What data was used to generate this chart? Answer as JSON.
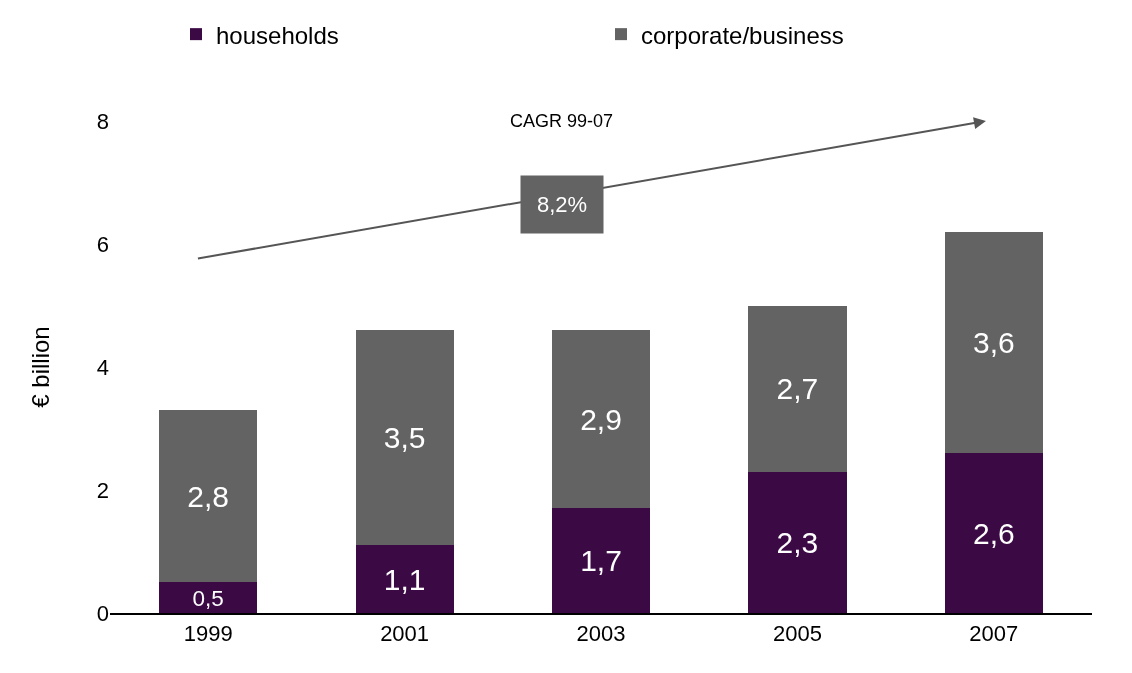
{
  "chart_data": {
    "type": "bar",
    "stacked": true,
    "ylabel": "€ billion",
    "categories": [
      "1999",
      "2001",
      "2003",
      "2005",
      "2007"
    ],
    "series": [
      {
        "name": "households",
        "color": "#3b0a45",
        "values": [
          0.5,
          1.1,
          1.7,
          2.3,
          2.6
        ],
        "value_labels": [
          "0,5",
          "1,1",
          "1,7",
          "2,3",
          "2,6"
        ]
      },
      {
        "name": "corporate/business",
        "color": "#636363",
        "values": [
          2.8,
          3.5,
          2.9,
          2.7,
          3.6
        ],
        "value_labels": [
          "2,8",
          "3,5",
          "2,9",
          "2,7",
          "3,6"
        ]
      }
    ],
    "ylim": [
      0,
      8
    ],
    "yticks": [
      0,
      2,
      4,
      6,
      8
    ],
    "legend": "top",
    "annotations": [
      "CAGR 99-07",
      "8,2%"
    ]
  }
}
